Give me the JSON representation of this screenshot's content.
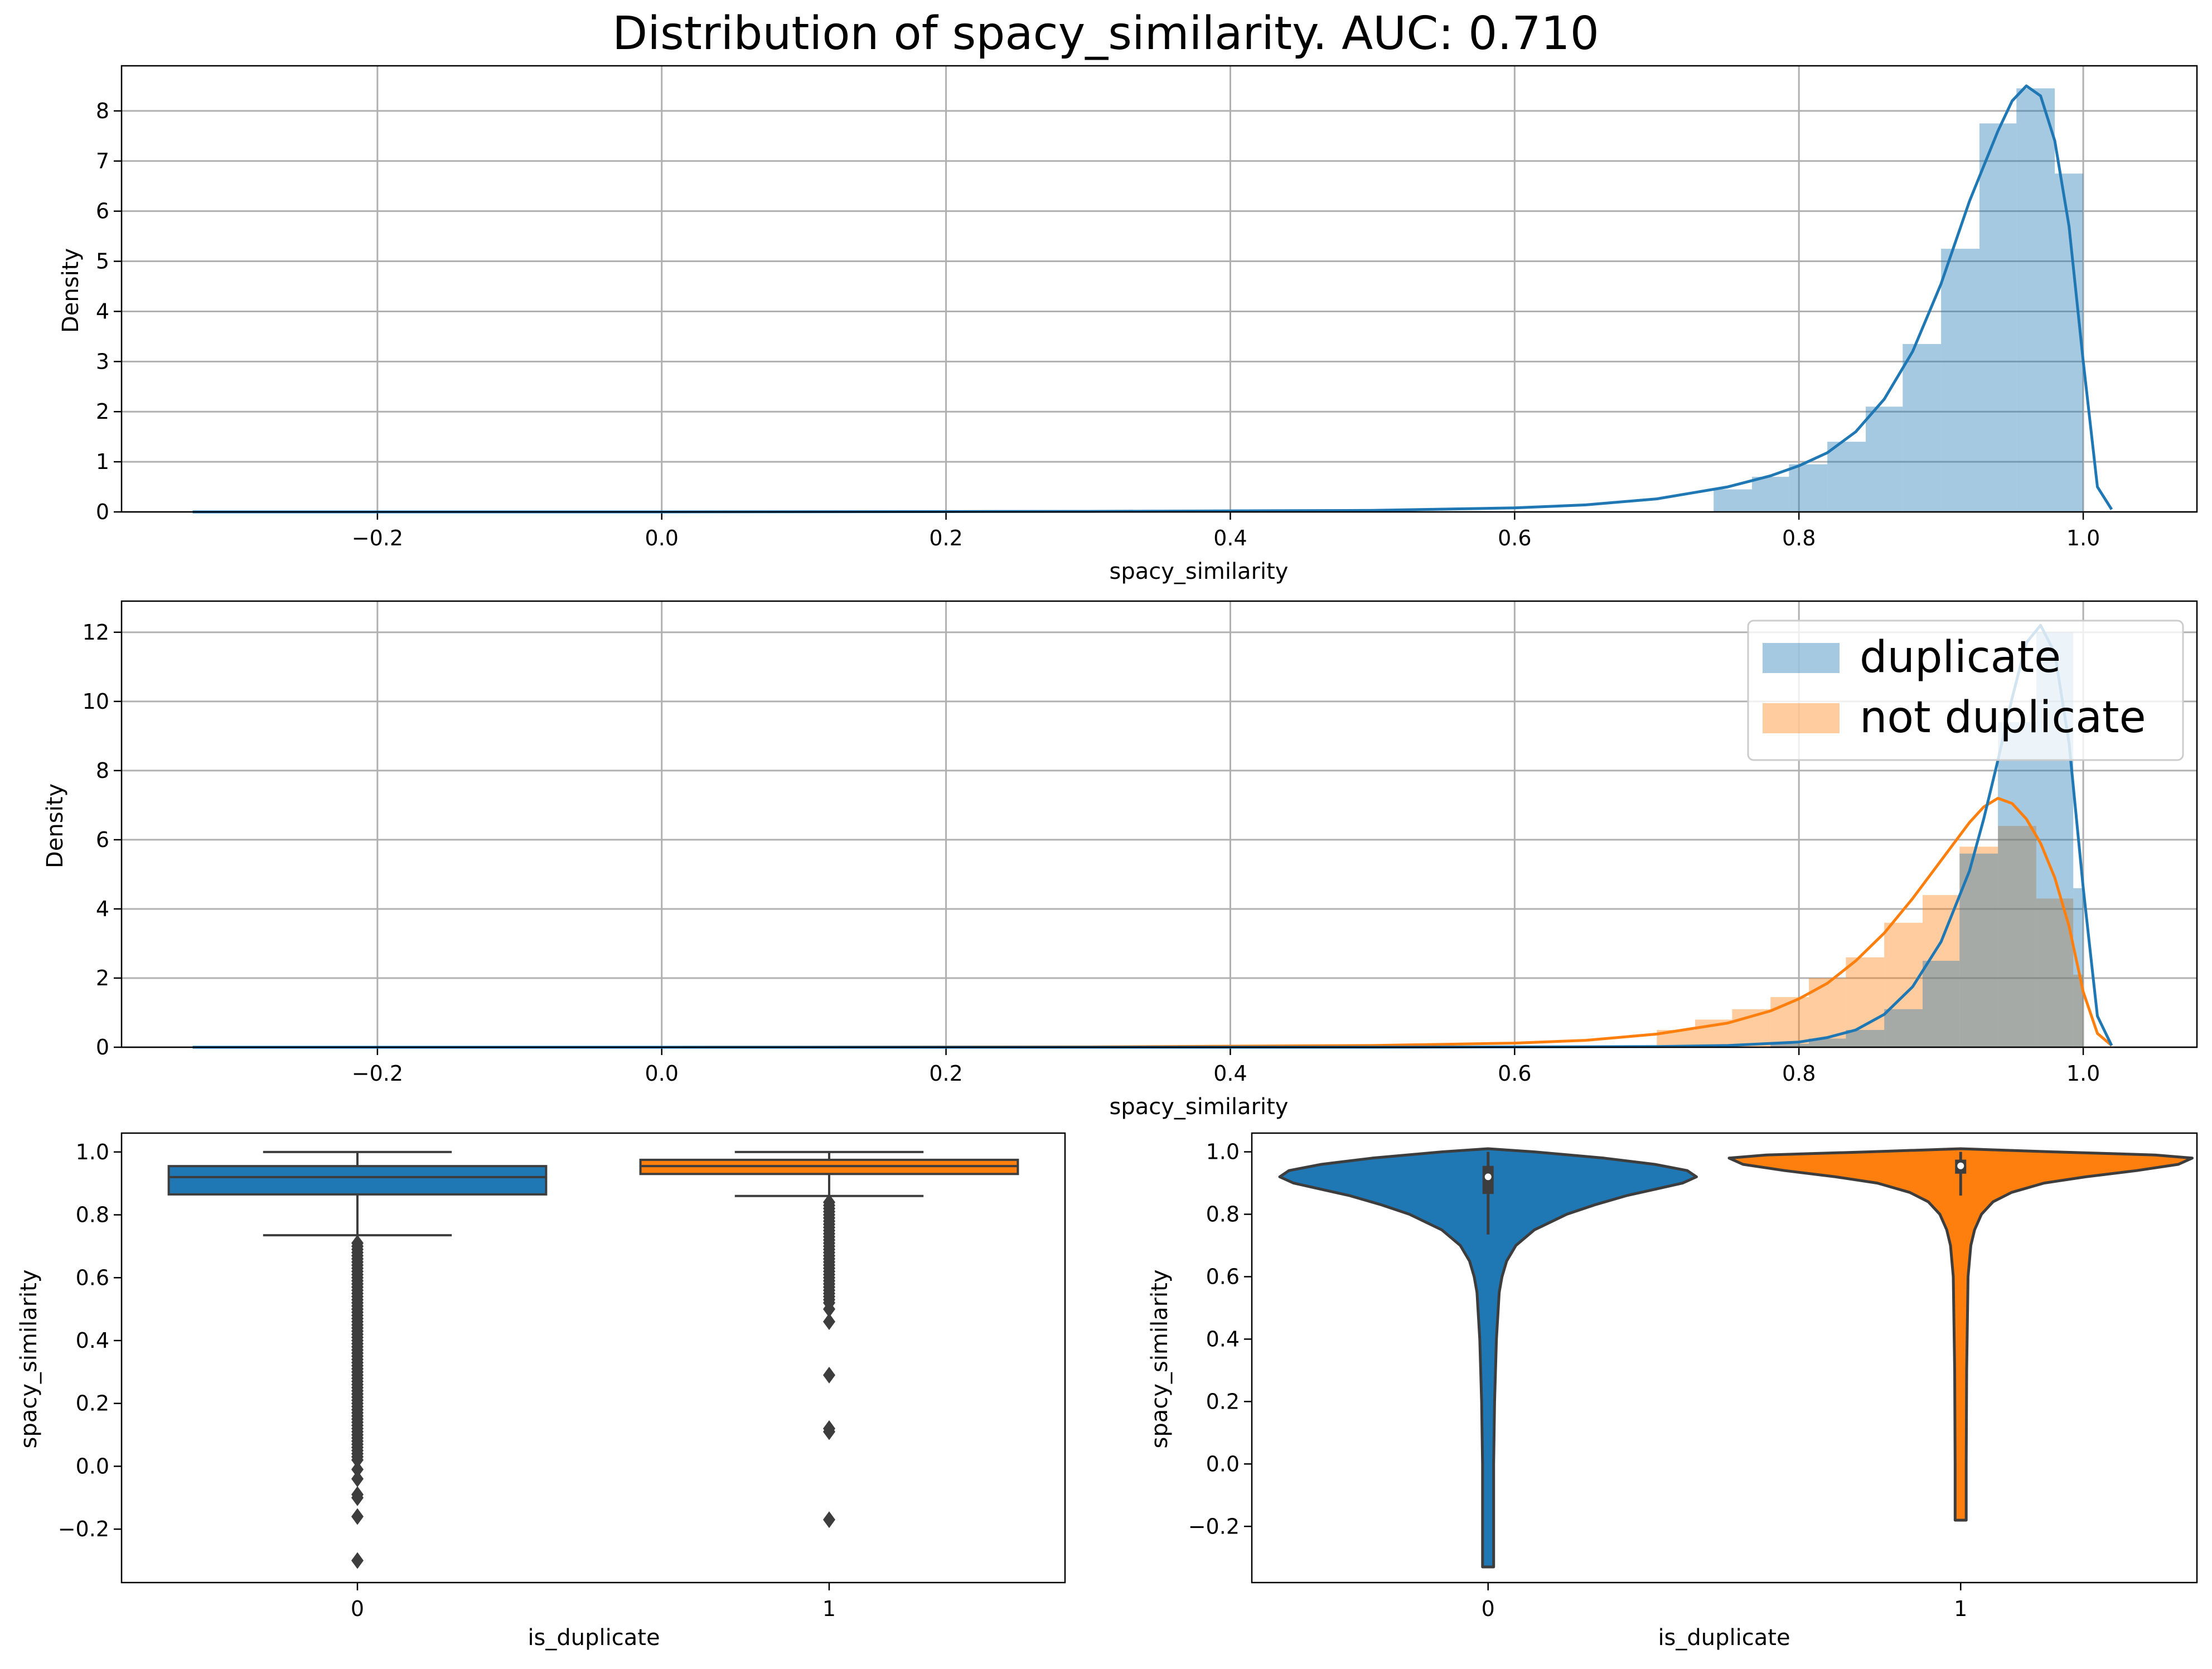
{
  "title": "Distribution of spacy_similarity. AUC: 0.710",
  "colors": {
    "duplicate": "#1f77b4",
    "not_duplicate": "#ff7f0e",
    "box_line": "#3d3d3d",
    "grid": "#b0b0b0"
  },
  "chart_data": [
    {
      "panel": "all-distribution",
      "type": "area",
      "xlabel": "spacy_similarity",
      "ylabel": "Density",
      "xlim": [
        -0.38,
        1.08
      ],
      "ylim": [
        0,
        8.9
      ],
      "grid": true,
      "xticks": [
        -0.2,
        0.0,
        0.2,
        0.4,
        0.6,
        0.8,
        1.0
      ],
      "xtick_labels": [
        "−0.2",
        "0.0",
        "0.2",
        "0.4",
        "0.6",
        "0.8",
        "1.0"
      ],
      "yticks": [
        0,
        1,
        2,
        3,
        4,
        5,
        6,
        7,
        8
      ],
      "ytick_labels": [
        "0",
        "1",
        "2",
        "3",
        "4",
        "5",
        "6",
        "7",
        "8"
      ],
      "histogram": {
        "bin_edges": [
          0.74,
          0.767,
          0.793,
          0.82,
          0.847,
          0.873,
          0.9,
          0.927,
          0.953,
          0.98,
          1.0
        ],
        "values": [
          0.45,
          0.7,
          0.95,
          1.4,
          2.1,
          3.35,
          5.25,
          7.75,
          8.45,
          6.75
        ]
      },
      "kde": {
        "x": [
          -0.33,
          0.0,
          0.3,
          0.5,
          0.6,
          0.65,
          0.7,
          0.75,
          0.78,
          0.8,
          0.82,
          0.84,
          0.86,
          0.88,
          0.9,
          0.92,
          0.94,
          0.95,
          0.96,
          0.97,
          0.98,
          0.99,
          1.0,
          1.01,
          1.02
        ],
        "y": [
          0.0,
          0.0,
          0.01,
          0.03,
          0.08,
          0.14,
          0.26,
          0.5,
          0.72,
          0.92,
          1.18,
          1.6,
          2.25,
          3.2,
          4.55,
          6.2,
          7.6,
          8.2,
          8.5,
          8.3,
          7.4,
          5.7,
          3.0,
          0.5,
          0.05
        ]
      }
    },
    {
      "panel": "by-class-distribution",
      "type": "area",
      "xlabel": "spacy_similarity",
      "ylabel": "Density",
      "xlim": [
        -0.38,
        1.08
      ],
      "ylim": [
        0,
        12.9
      ],
      "grid": true,
      "xticks": [
        -0.2,
        0.0,
        0.2,
        0.4,
        0.6,
        0.8,
        1.0
      ],
      "xtick_labels": [
        "−0.2",
        "0.0",
        "0.2",
        "0.4",
        "0.6",
        "0.8",
        "1.0"
      ],
      "yticks": [
        0,
        2,
        4,
        6,
        8,
        10,
        12
      ],
      "ytick_labels": [
        "0",
        "2",
        "4",
        "6",
        "8",
        "10",
        "12"
      ],
      "legend_placement": "top-right",
      "series": [
        {
          "name": "not duplicate",
          "color": "#ff7f0e",
          "histogram": {
            "bin_edges": [
              0.7,
              0.727,
              0.753,
              0.78,
              0.807,
              0.833,
              0.86,
              0.887,
              0.913,
              0.94,
              0.967,
              0.993,
              1.0
            ],
            "values": [
              0.5,
              0.8,
              1.1,
              1.45,
              2.0,
              2.6,
              3.6,
              4.4,
              5.8,
              6.4,
              4.3,
              2.1
            ]
          },
          "kde": {
            "x": [
              -0.33,
              0.0,
              0.3,
              0.5,
              0.6,
              0.65,
              0.7,
              0.75,
              0.78,
              0.8,
              0.82,
              0.84,
              0.86,
              0.88,
              0.9,
              0.92,
              0.93,
              0.94,
              0.95,
              0.96,
              0.97,
              0.98,
              0.99,
              1.0,
              1.01,
              1.02
            ],
            "y": [
              0.0,
              0.0,
              0.01,
              0.05,
              0.12,
              0.2,
              0.38,
              0.7,
              1.05,
              1.4,
              1.85,
              2.5,
              3.3,
              4.3,
              5.4,
              6.5,
              6.95,
              7.2,
              7.05,
              6.6,
              5.9,
              4.9,
              3.5,
              1.6,
              0.4,
              0.05
            ]
          }
        },
        {
          "name": "duplicate",
          "color": "#1f77b4",
          "histogram": {
            "bin_edges": [
              0.78,
              0.807,
              0.833,
              0.86,
              0.887,
              0.913,
              0.94,
              0.967,
              0.993,
              1.0
            ],
            "values": [
              0.1,
              0.25,
              0.5,
              1.1,
              2.5,
              5.6,
              9.4,
              12.0,
              4.6
            ]
          },
          "kde": {
            "x": [
              -0.33,
              0.5,
              0.7,
              0.75,
              0.8,
              0.82,
              0.84,
              0.86,
              0.88,
              0.9,
              0.92,
              0.93,
              0.94,
              0.95,
              0.96,
              0.97,
              0.98,
              0.99,
              1.0,
              1.01,
              1.02
            ],
            "y": [
              0.0,
              0.0,
              0.02,
              0.05,
              0.15,
              0.28,
              0.5,
              0.95,
              1.75,
              3.05,
              5.1,
              6.6,
              8.3,
              10.1,
              11.7,
              12.2,
              11.4,
              8.8,
              4.6,
              0.9,
              0.05
            ]
          }
        }
      ]
    },
    {
      "panel": "boxplot",
      "type": "box",
      "xlabel": "is_duplicate",
      "ylabel": "spacy_similarity",
      "categories": [
        "0",
        "1"
      ],
      "ylim": [
        -0.37,
        1.06
      ],
      "yticks": [
        -0.2,
        0.0,
        0.2,
        0.4,
        0.6,
        0.8,
        1.0
      ],
      "ytick_labels": [
        "−0.2",
        "0.0",
        "0.2",
        "0.4",
        "0.6",
        "0.8",
        "1.0"
      ],
      "boxes": [
        {
          "category": "0",
          "whisker_low": 0.735,
          "q1": 0.865,
          "median": 0.92,
          "q3": 0.955,
          "whisker_high": 1.0,
          "color": "#1f77b4"
        },
        {
          "category": "1",
          "whisker_low": 0.86,
          "q1": 0.93,
          "median": 0.955,
          "q3": 0.975,
          "whisker_high": 1.0,
          "color": "#ff7f0e"
        }
      ],
      "outliers": [
        {
          "category": "0",
          "dense_range": [
            0.02,
            0.72
          ],
          "points": [
            -0.01,
            -0.04,
            -0.09,
            -0.1,
            -0.16,
            -0.3
          ]
        },
        {
          "category": "1",
          "dense_range": [
            0.52,
            0.85
          ],
          "points": [
            0.5,
            0.46,
            0.29,
            0.11,
            0.12,
            -0.17
          ]
        }
      ]
    },
    {
      "panel": "violinplot",
      "type": "violin",
      "xlabel": "is_duplicate",
      "ylabel": "spacy_similarity",
      "categories": [
        "0",
        "1"
      ],
      "ylim": [
        -0.38,
        1.06
      ],
      "yticks": [
        -0.2,
        0.0,
        0.2,
        0.4,
        0.6,
        0.8,
        1.0
      ],
      "ytick_labels": [
        "−0.2",
        "0.0",
        "0.2",
        "0.4",
        "0.6",
        "0.8",
        "1.0"
      ],
      "violins": [
        {
          "category": "0",
          "color": "#1f77b4",
          "y": [
            -0.33,
            -0.2,
            0.0,
            0.2,
            0.4,
            0.55,
            0.6,
            0.65,
            0.7,
            0.75,
            0.8,
            0.83,
            0.86,
            0.88,
            0.9,
            0.92,
            0.94,
            0.96,
            0.98,
            1.0,
            1.01
          ],
          "half_width": [
            0.012,
            0.012,
            0.012,
            0.014,
            0.018,
            0.024,
            0.03,
            0.04,
            0.06,
            0.1,
            0.17,
            0.23,
            0.3,
            0.36,
            0.42,
            0.45,
            0.43,
            0.36,
            0.25,
            0.1,
            0.0
          ],
          "q1": 0.865,
          "median": 0.92,
          "q3": 0.955,
          "whisker_low": 0.735,
          "whisker_high": 1.0
        },
        {
          "category": "1",
          "color": "#ff7f0e",
          "y": [
            -0.18,
            0.0,
            0.3,
            0.6,
            0.7,
            0.75,
            0.8,
            0.84,
            0.87,
            0.9,
            0.92,
            0.94,
            0.96,
            0.98,
            0.99,
            1.0,
            1.01
          ],
          "half_width": [
            0.012,
            0.012,
            0.013,
            0.016,
            0.022,
            0.03,
            0.045,
            0.07,
            0.11,
            0.18,
            0.27,
            0.38,
            0.47,
            0.5,
            0.42,
            0.2,
            0.0
          ],
          "q1": 0.93,
          "median": 0.955,
          "q3": 0.975,
          "whisker_low": 0.86,
          "whisker_high": 1.0
        }
      ]
    }
  ]
}
